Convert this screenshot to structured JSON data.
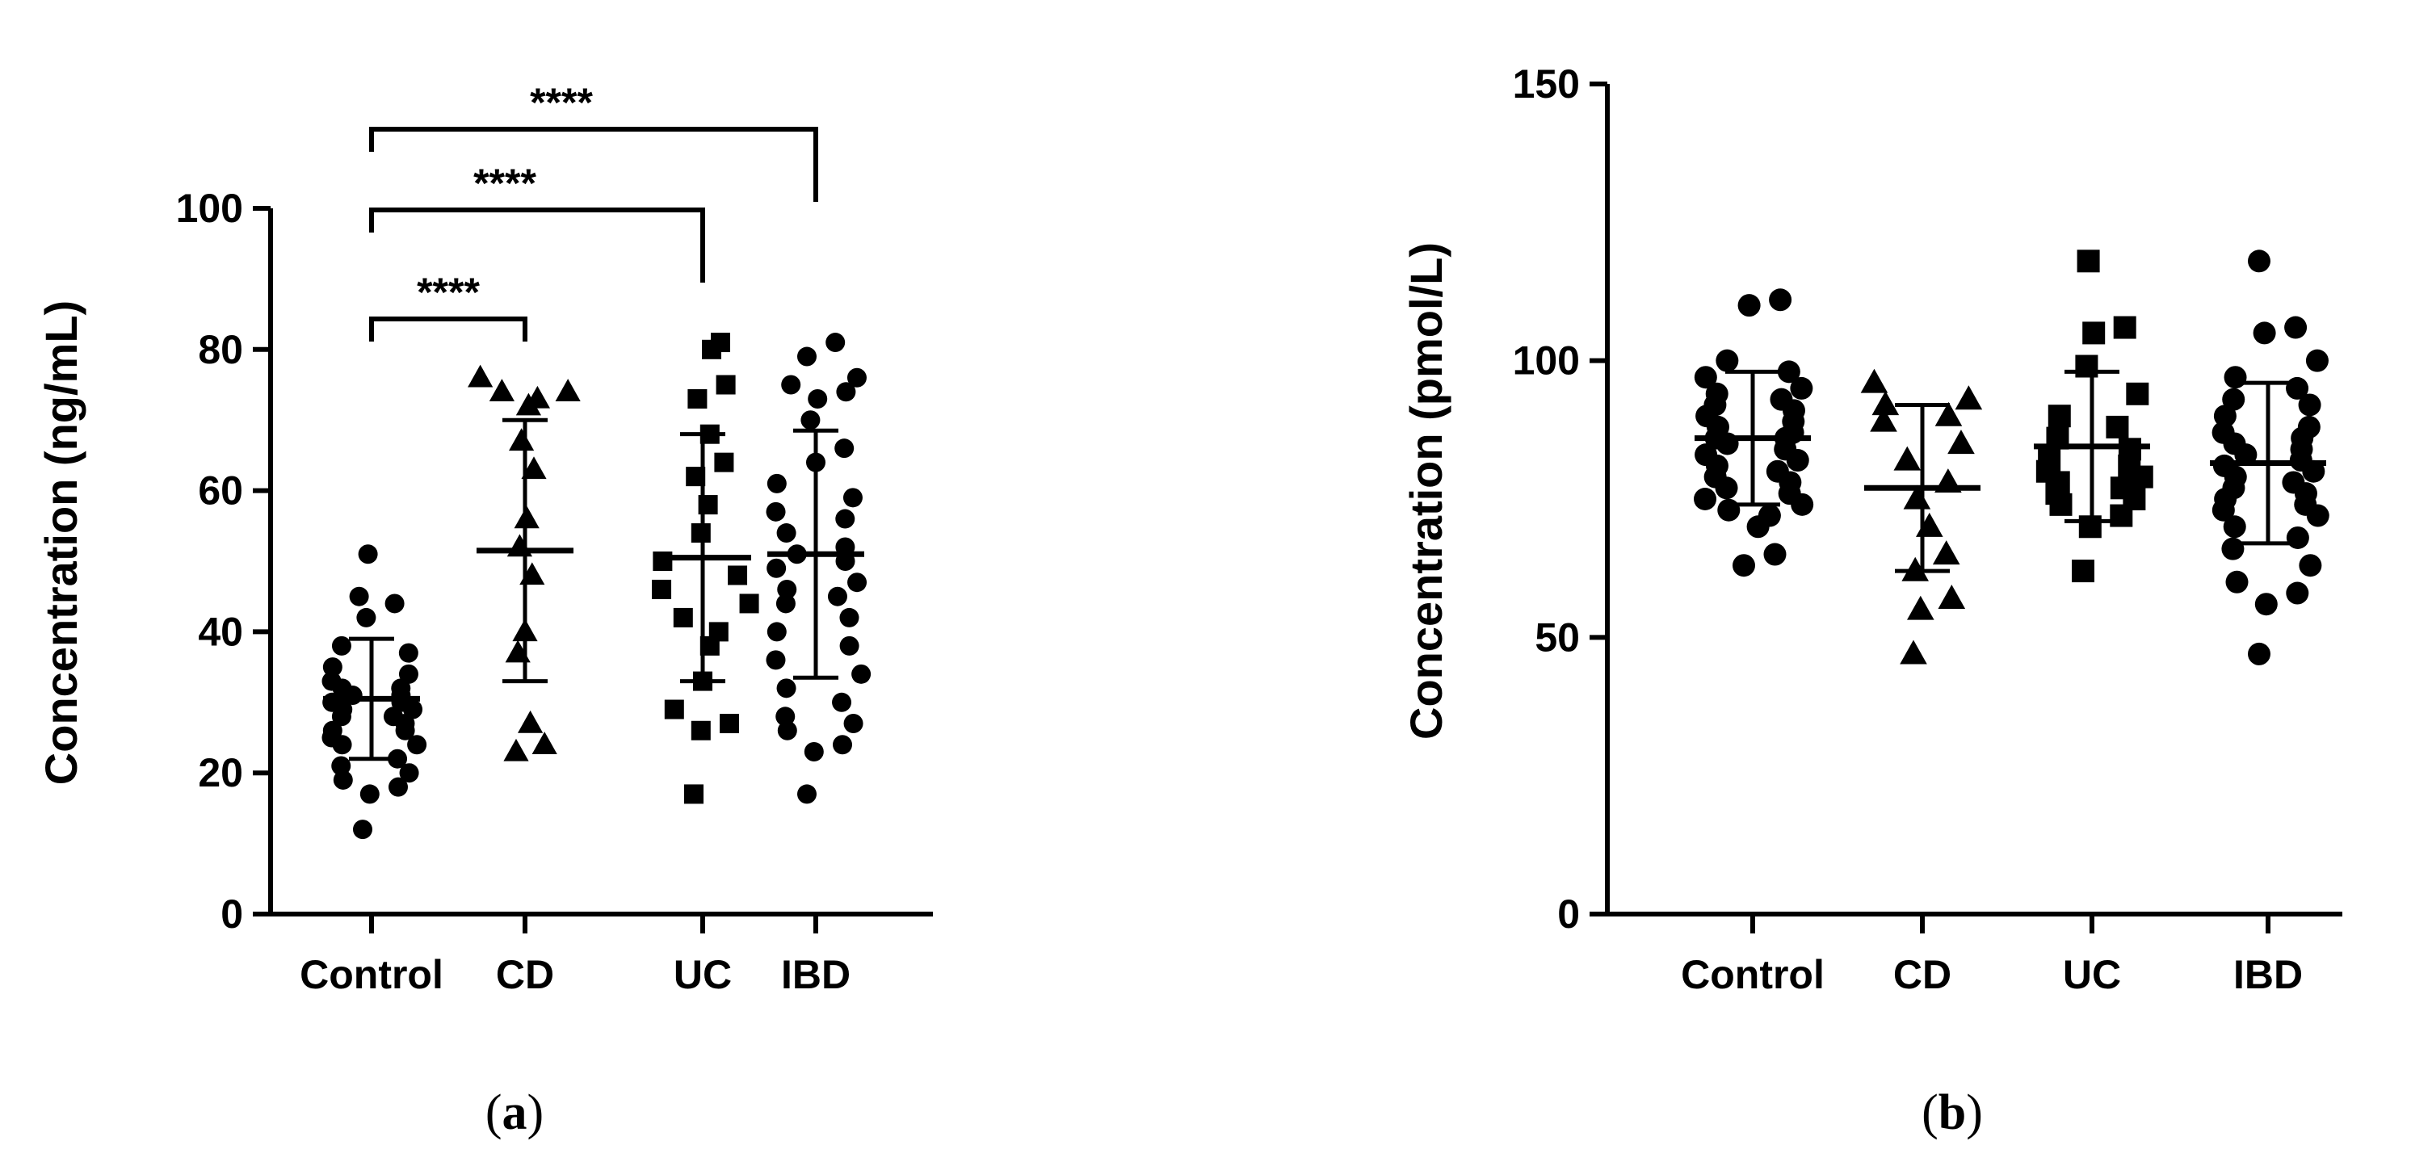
{
  "chart_data": [
    {
      "type": "scatter",
      "panel_label": "a",
      "ylabel": "Concentration (ng/mL)",
      "xlabel": "",
      "ylim": [
        0,
        100
      ],
      "yticks": [
        "0",
        "20",
        "40",
        "60",
        "80",
        "100"
      ],
      "ytick_values": [
        0,
        20,
        40,
        60,
        80,
        100
      ],
      "categories": [
        "Control",
        "CD",
        "UC",
        "IBD"
      ],
      "marker_shapes": [
        "circle",
        "triangle",
        "square",
        "circle"
      ],
      "series": [
        {
          "category": "Control",
          "mean": 30.5,
          "sd": 8.5,
          "values": [
            51,
            45,
            44,
            42,
            38,
            37,
            35,
            34,
            33,
            32,
            32,
            31,
            31,
            30,
            30,
            29,
            29,
            28,
            28,
            27,
            26,
            26,
            25,
            24,
            24,
            22,
            21,
            20,
            19,
            18,
            17,
            12
          ]
        },
        {
          "category": "CD",
          "mean": 51.5,
          "sd": 18.5,
          "values": [
            76,
            74,
            74,
            73,
            72,
            67,
            63,
            56,
            52,
            48,
            40,
            37,
            27,
            24,
            23
          ]
        },
        {
          "category": "UC",
          "mean": 50.5,
          "sd": 17.5,
          "values": [
            81,
            80,
            75,
            73,
            68,
            64,
            62,
            58,
            54,
            50,
            48,
            46,
            44,
            42,
            40,
            38,
            33,
            29,
            27,
            26,
            17
          ]
        },
        {
          "category": "IBD",
          "mean": 51,
          "sd": 17.5,
          "values": [
            81,
            79,
            76,
            75,
            74,
            73,
            70,
            66,
            64,
            61,
            59,
            57,
            56,
            54,
            52,
            51,
            50,
            49,
            47,
            46,
            45,
            44,
            42,
            40,
            38,
            36,
            34,
            32,
            30,
            28,
            27,
            26,
            24,
            23,
            17
          ]
        }
      ],
      "significance": [
        {
          "from": "Control",
          "to": "CD",
          "label": "****"
        },
        {
          "from": "Control",
          "to": "UC",
          "label": "****"
        },
        {
          "from": "Control",
          "to": "IBD",
          "label": "****"
        }
      ]
    },
    {
      "type": "scatter",
      "panel_label": "b",
      "ylabel": "Concentration (pmol/L)",
      "xlabel": "",
      "ylim": [
        0,
        150
      ],
      "yticks": [
        "0",
        "50",
        "100",
        "150"
      ],
      "ytick_values": [
        0,
        50,
        100,
        150
      ],
      "categories": [
        "Control",
        "CD",
        "UC",
        "IBD"
      ],
      "marker_shapes": [
        "circle",
        "triangle",
        "square",
        "circle"
      ],
      "series": [
        {
          "category": "Control",
          "mean": 86,
          "sd": 12,
          "values": [
            111,
            110,
            100,
            98,
            97,
            95,
            94,
            93,
            92,
            91,
            90,
            89,
            88,
            87,
            86,
            86,
            85,
            84,
            83,
            82,
            81,
            80,
            79,
            78,
            77,
            76,
            75,
            74,
            73,
            72,
            70,
            65,
            63
          ]
        },
        {
          "category": "CD",
          "mean": 77,
          "sd": 15,
          "values": [
            96,
            93,
            92,
            90,
            89,
            85,
            82,
            78,
            75,
            70,
            65,
            62,
            57,
            55,
            47
          ]
        },
        {
          "category": "UC",
          "mean": 84.5,
          "sd": 13.5,
          "values": [
            118,
            106,
            105,
            99,
            94,
            90,
            88,
            86,
            84,
            82,
            81,
            80,
            79,
            78,
            77,
            76,
            75,
            74,
            72,
            70,
            62
          ]
        },
        {
          "category": "IBD",
          "mean": 81.5,
          "sd": 14.5,
          "values": [
            118,
            106,
            105,
            100,
            97,
            95,
            93,
            92,
            90,
            88,
            87,
            86,
            85,
            84,
            83,
            82,
            81,
            80,
            79,
            78,
            77,
            76,
            75,
            74,
            73,
            72,
            70,
            68,
            66,
            63,
            60,
            58,
            56,
            47
          ]
        }
      ],
      "significance": []
    }
  ]
}
